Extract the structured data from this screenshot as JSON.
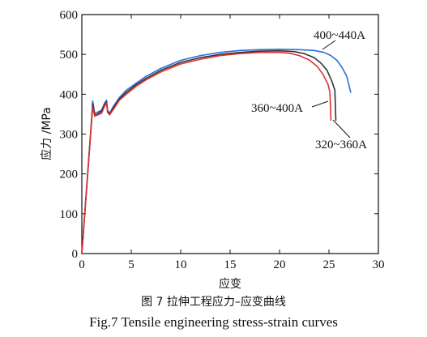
{
  "figure": {
    "caption_cn": "图 7  拉伸工程应力–应变曲线",
    "caption_en": "Fig.7  Tensile engineering stress-strain curves"
  },
  "chart_data": {
    "type": "line",
    "xlabel": "应变",
    "ylabel": "应力 /MPa",
    "xlim": [
      0,
      30
    ],
    "ylim": [
      0,
      600
    ],
    "xticks": [
      0,
      5,
      10,
      15,
      20,
      25,
      30
    ],
    "yticks": [
      0,
      100,
      200,
      300,
      400,
      500,
      600
    ],
    "grid": false,
    "series": [
      {
        "name": "400~440A",
        "color": "#2a6fdb",
        "x": [
          0,
          1.0,
          1.1,
          1.3,
          1.6,
          2.0,
          2.3,
          2.5,
          2.6,
          2.8,
          3.2,
          3.8,
          4.5,
          5.5,
          6.5,
          8,
          10,
          12,
          14,
          16,
          18,
          20,
          22,
          23.5,
          24.5,
          25.2,
          25.8,
          26.3,
          26.8,
          27.2
        ],
        "y": [
          0,
          340,
          383,
          352,
          355,
          360,
          378,
          385,
          360,
          352,
          370,
          392,
          410,
          428,
          445,
          465,
          485,
          497,
          505,
          510,
          512,
          513,
          512,
          510,
          505,
          497,
          485,
          468,
          445,
          405
        ]
      },
      {
        "name": "320~360A",
        "color": "#333333",
        "x": [
          0,
          1.0,
          1.1,
          1.3,
          1.6,
          2.0,
          2.3,
          2.5,
          2.6,
          2.8,
          3.2,
          3.8,
          4.5,
          5.5,
          6.5,
          8,
          10,
          12,
          14,
          16,
          18,
          20,
          21.5,
          22.5,
          23.5,
          24.2,
          24.8,
          25.3,
          25.6,
          25.7
        ],
        "y": [
          0,
          340,
          376,
          348,
          350,
          358,
          374,
          381,
          358,
          350,
          366,
          388,
          405,
          424,
          440,
          460,
          480,
          492,
          500,
          505,
          508,
          509,
          507,
          502,
          492,
          478,
          460,
          432,
          410,
          335
        ]
      },
      {
        "name": "360~400A",
        "color": "#e03030",
        "x": [
          0,
          1.0,
          1.1,
          1.3,
          1.6,
          2.0,
          2.3,
          2.5,
          2.6,
          2.8,
          3.2,
          3.8,
          4.5,
          5.5,
          6.5,
          8,
          10,
          12,
          14,
          16,
          18,
          20,
          21,
          22,
          23,
          23.8,
          24.4,
          24.9,
          25.1,
          25.2
        ],
        "y": [
          0,
          335,
          368,
          345,
          348,
          352,
          370,
          378,
          355,
          348,
          362,
          385,
          400,
          420,
          436,
          456,
          476,
          488,
          497,
          502,
          505,
          505,
          503,
          497,
          486,
          470,
          450,
          425,
          405,
          335
        ]
      }
    ],
    "annotations": [
      "400~440A",
      "360~400A",
      "320~360A"
    ]
  }
}
